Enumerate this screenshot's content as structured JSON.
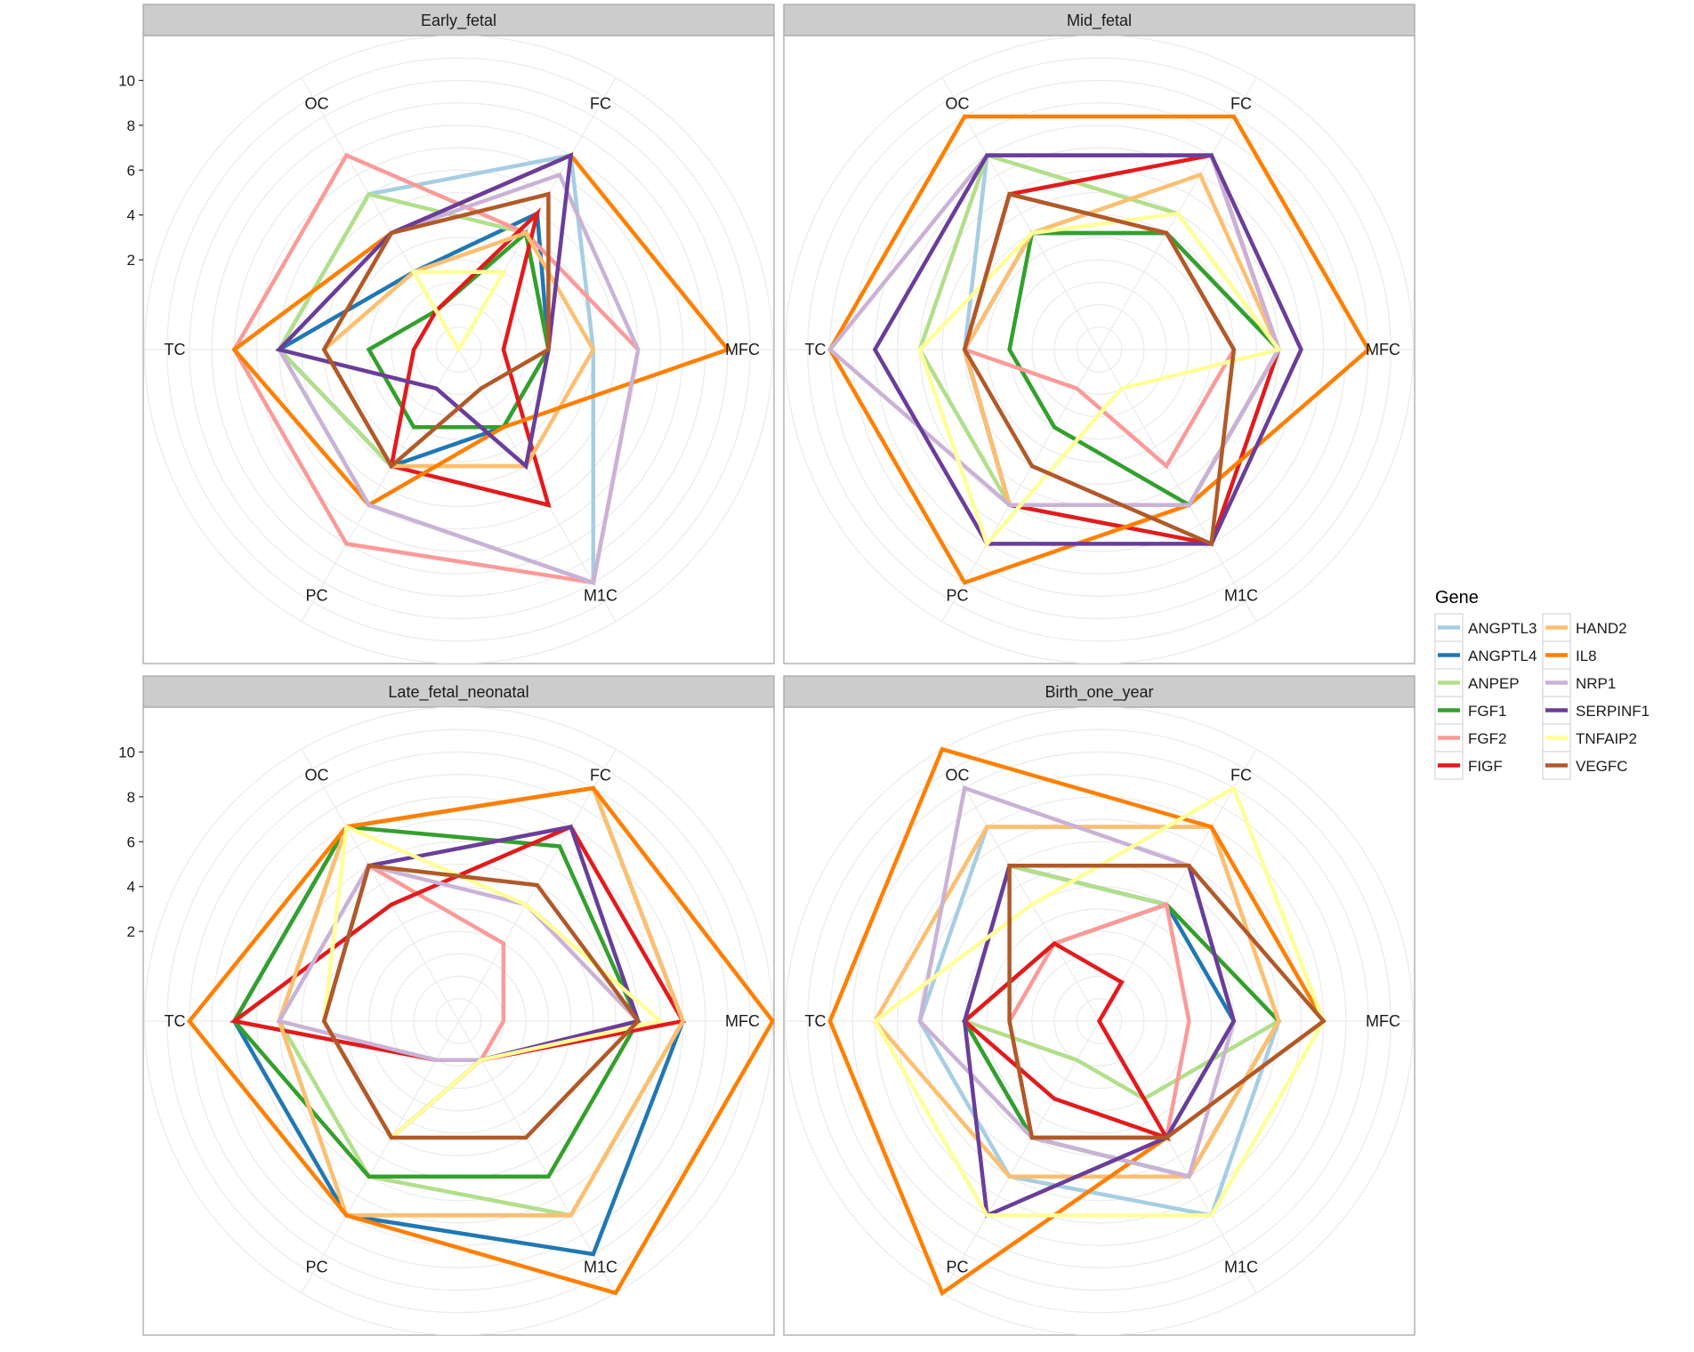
{
  "chart_data": {
    "type": "radar",
    "axes": [
      "MFC",
      "FC",
      "OC",
      "TC",
      "PC",
      "M1C"
    ],
    "y_ticks": [
      "2",
      "4",
      "6",
      "8",
      "10"
    ],
    "ylim": [
      -2,
      12
    ],
    "legend_title": "Gene",
    "genes": [
      {
        "name": "ANGPTL3",
        "color": "#a6cee3"
      },
      {
        "name": "ANGPTL4",
        "color": "#1f78b4"
      },
      {
        "name": "ANPEP",
        "color": "#b2df8a"
      },
      {
        "name": "FGF1",
        "color": "#33a02c"
      },
      {
        "name": "FGF2",
        "color": "#fb9a99"
      },
      {
        "name": "FIGF",
        "color": "#e31a1c"
      },
      {
        "name": "HAND2",
        "color": "#fdbf6f"
      },
      {
        "name": "IL8",
        "color": "#ff7f00"
      },
      {
        "name": "NRP1",
        "color": "#cab2d6"
      },
      {
        "name": "SERPINF1",
        "color": "#6a3d9a"
      },
      {
        "name": "TNFAIP2",
        "color": "#ffff99"
      },
      {
        "name": "VEGFC",
        "color": "#b15928"
      }
    ],
    "panels": [
      {
        "title": "Early_fetal",
        "series": {
          "ANGPTL3": [
            4,
            8,
            6,
            6,
            6,
            10
          ],
          "ANGPTL4": [
            2,
            5,
            2,
            6,
            4,
            2
          ],
          "ANPEP": [
            2,
            4,
            6,
            6,
            4,
            4
          ],
          "FGF1": [
            2,
            4,
            0,
            2,
            2,
            2
          ],
          "FGF2": [
            6,
            4,
            8,
            8,
            8,
            10
          ],
          "FIGF": [
            0,
            5,
            0,
            0,
            4,
            6
          ],
          "HAND2": [
            4,
            4,
            2,
            4,
            4,
            4
          ],
          "IL8": [
            10,
            8,
            4,
            8,
            6,
            2
          ],
          "NRP1": [
            6,
            7,
            4,
            6,
            6,
            10
          ],
          "SERPINF1": [
            2,
            8,
            4,
            6,
            0,
            4
          ],
          "TNFAIP2": [
            -2,
            2,
            2,
            -2,
            -2,
            -2
          ],
          "VEGFC": [
            2,
            6,
            4,
            4,
            4,
            0
          ]
        }
      },
      {
        "title": "Mid_fetal",
        "series": {
          "ANGPTL3": [
            6,
            8,
            8,
            4,
            6,
            8
          ],
          "ANGPTL4": [
            6,
            4,
            4,
            4,
            6,
            6
          ],
          "ANPEP": [
            6,
            5,
            8,
            6,
            6,
            6
          ],
          "FGF1": [
            6,
            4,
            4,
            2,
            2,
            6
          ],
          "FGF2": [
            4,
            4,
            6,
            4,
            0,
            4
          ],
          "FIGF": [
            6,
            8,
            6,
            4,
            6,
            8
          ],
          "HAND2": [
            6,
            7,
            4,
            4,
            6,
            6
          ],
          "IL8": [
            10,
            10,
            10,
            10,
            10,
            6
          ],
          "NRP1": [
            6,
            8,
            8,
            10,
            6,
            6
          ],
          "SERPINF1": [
            7,
            8,
            8,
            8,
            8,
            8
          ],
          "TNFAIP2": [
            6,
            5,
            4,
            6,
            8,
            0
          ],
          "VEGFC": [
            4,
            4,
            6,
            4,
            4,
            8
          ]
        }
      },
      {
        "title": "Late_fetal_neonatal",
        "series": {
          "ANGPTL3": [
            8,
            10,
            8,
            6,
            8,
            8
          ],
          "ANGPTL4": [
            8,
            10,
            8,
            8,
            8,
            10
          ],
          "ANPEP": [
            8,
            10,
            8,
            6,
            6,
            8
          ],
          "FGF1": [
            6,
            7,
            8,
            8,
            6,
            6
          ],
          "FGF2": [
            0,
            2,
            6,
            4,
            4,
            0
          ],
          "FIGF": [
            8,
            8,
            4,
            8,
            0,
            0
          ],
          "HAND2": [
            8,
            10,
            8,
            6,
            8,
            8
          ],
          "IL8": [
            12,
            10,
            8,
            10,
            8,
            12
          ],
          "NRP1": [
            6,
            4,
            6,
            6,
            0,
            0
          ],
          "SERPINF1": [
            6,
            8,
            6,
            4,
            4,
            0
          ],
          "TNFAIP2": [
            7,
            4,
            8,
            4,
            4,
            0
          ],
          "VEGFC": [
            6,
            5,
            6,
            4,
            4,
            4
          ]
        }
      },
      {
        "title": "Birth_one_year",
        "series": {
          "ANGPTL3": [
            6,
            8,
            8,
            6,
            6,
            8
          ],
          "ANGPTL4": [
            4,
            4,
            6,
            4,
            4,
            4
          ],
          "ANPEP": [
            6,
            4,
            6,
            4,
            0,
            2
          ],
          "FGF1": [
            6,
            4,
            2,
            4,
            4,
            6
          ],
          "FGF2": [
            2,
            4,
            2,
            2,
            4,
            4
          ],
          "FIGF": [
            -2,
            0,
            2,
            4,
            2,
            4
          ],
          "HAND2": [
            6,
            8,
            8,
            8,
            6,
            6
          ],
          "IL8": [
            8,
            8,
            12,
            10,
            12,
            4
          ],
          "NRP1": [
            4,
            6,
            10,
            6,
            4,
            6
          ],
          "SERPINF1": [
            4,
            6,
            6,
            4,
            8,
            4
          ],
          "TNFAIP2": [
            8,
            10,
            4,
            8,
            8,
            8
          ],
          "VEGFC": [
            8,
            6,
            6,
            2,
            4,
            4
          ]
        }
      }
    ]
  }
}
